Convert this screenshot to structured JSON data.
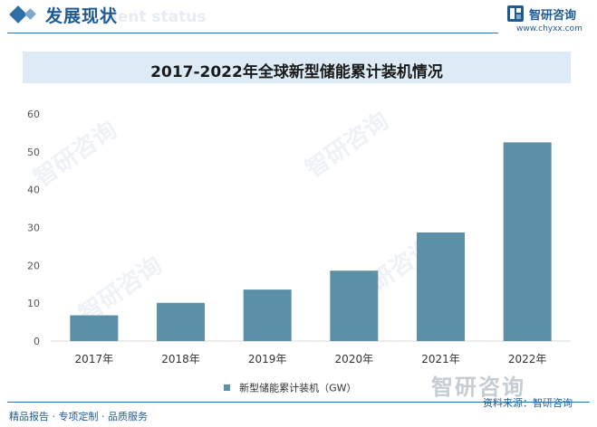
{
  "header": {
    "section_title": "发展现状",
    "section_subtitle": "ment status",
    "logo_name": "智研咨询",
    "logo_url": "www.chyxx.com"
  },
  "watermark": "智研咨询",
  "chart_data": {
    "type": "bar",
    "title": "2017-2022年全球新型储能累计装机情况",
    "categories": [
      "2017年",
      "2018年",
      "2019年",
      "2020年",
      "2021年",
      "2022年"
    ],
    "series": [
      {
        "name": "新型储能累计装机（GW）",
        "values": [
          6.8,
          10.1,
          13.6,
          18.6,
          28.7,
          52.5
        ]
      }
    ],
    "y_ticks": [
      "0",
      "10",
      "20",
      "30",
      "40",
      "50",
      "60"
    ],
    "ylim": [
      0,
      60
    ],
    "xlabel": "",
    "ylabel": "",
    "grid": false,
    "legend_position": "bottom",
    "bar_color": "#5b90a8"
  },
  "footer": {
    "left": "精品报告 · 专项定制 · 品质服务",
    "right": "资料来源：智研咨询",
    "watermark": "智研咨询"
  }
}
